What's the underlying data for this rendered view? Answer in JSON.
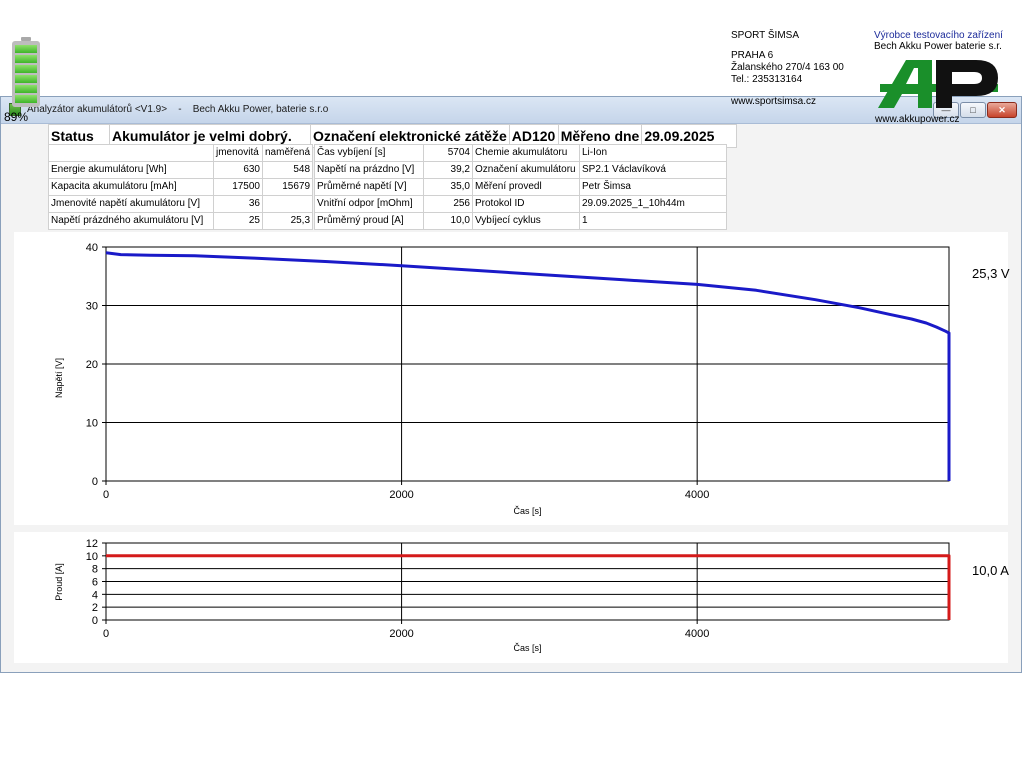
{
  "titlebar": {
    "title": "Analyzátor akumulátorů <V1.9>",
    "separator": "-",
    "company": "Bech Akku Power, baterie s.r.o",
    "minimize_glyph": "—",
    "maximize_glyph": "□",
    "close_glyph": "✕"
  },
  "battery": {
    "percent_label": "89%",
    "level": 0.89
  },
  "header": {
    "status_label": "Status",
    "status_text": "Akumulátor je velmi dobrý.",
    "load_label": "Označení elektronické zátěže",
    "load_value": "AD120",
    "date_label": "Měřeno dne",
    "date_value": "29.09.2025"
  },
  "params": {
    "col_nominal": "jmenovitá",
    "col_measured": "naměřená",
    "rows": [
      {
        "label": "Energie akumulátoru [Wh]",
        "nominal": "630",
        "measured": "548"
      },
      {
        "label": "Kapacita akumulátoru [mAh]",
        "nominal": "17500",
        "measured": "15679"
      },
      {
        "label": "Jmenovité napětí akumulátoru [V]",
        "nominal": "36",
        "measured": ""
      },
      {
        "label": "Napětí prázdného akumulátoru [V]",
        "nominal": "25",
        "measured": "25,3"
      }
    ]
  },
  "measurements": [
    {
      "label": "Čas vybíjení [s]",
      "value": "5704"
    },
    {
      "label": "Napětí na prázdno [V]",
      "value": "39,2"
    },
    {
      "label": "Průměrné napětí [V]",
      "value": "35,0"
    },
    {
      "label": "Vnitřní odpor [mOhm]",
      "value": "256"
    },
    {
      "label": "Průměrný proud [A]",
      "value": "10,0"
    }
  ],
  "info": [
    {
      "label": "Chemie akumulátoru",
      "value": "Li-Ion"
    },
    {
      "label": "Označení akumulátoru",
      "value": "SP2.1 Václavíková"
    },
    {
      "label": "Měření provedl",
      "value": "Petr Šimsa"
    },
    {
      "label": "Protokol ID",
      "value": "29.09.2025_1_10h44m"
    },
    {
      "label": "Vybíjecí cyklus",
      "value": "1"
    }
  ],
  "customer": {
    "name": "SPORT ŠIMSA",
    "city": "PRAHA 6",
    "street": "Žalanského 270/4  163 00",
    "phone": "Tel.: 235313164",
    "web": "www.sportsimsa.cz"
  },
  "manufacturer": {
    "label": "Výrobce testovacího zařízení",
    "name": "Bech Akku Power baterie s.r.",
    "web": "www.akkupower.cz"
  },
  "chart_data": [
    {
      "type": "line",
      "xlabel": "Čas [s]",
      "ylabel": "Napětí [V]",
      "xlim": [
        0,
        5704
      ],
      "ylim": [
        0,
        40
      ],
      "xticks": [
        0,
        2000,
        4000
      ],
      "yticks": [
        0,
        10,
        20,
        30,
        40
      ],
      "grid": true,
      "color": "#1a1ac8",
      "current_value_label": "25,3 V",
      "x": [
        0,
        100,
        300,
        600,
        1000,
        1500,
        2000,
        2500,
        3000,
        3500,
        4000,
        4400,
        4800,
        5100,
        5300,
        5450,
        5550,
        5620,
        5680,
        5704,
        5704
      ],
      "y": [
        39.0,
        38.7,
        38.6,
        38.5,
        38.1,
        37.5,
        36.8,
        36.0,
        35.2,
        34.4,
        33.6,
        32.6,
        31.0,
        29.6,
        28.5,
        27.7,
        27.0,
        26.3,
        25.6,
        25.3,
        0
      ]
    },
    {
      "type": "line",
      "xlabel": "Čas [s]",
      "ylabel": "Proud [A]",
      "xlim": [
        0,
        5704
      ],
      "ylim": [
        0,
        12
      ],
      "xticks": [
        0,
        2000,
        4000
      ],
      "yticks": [
        0,
        2,
        4,
        6,
        8,
        10,
        12
      ],
      "grid": true,
      "color": "#d41a1a",
      "current_value_label": "10,0 A",
      "x": [
        0,
        5704,
        5704
      ],
      "y": [
        10.0,
        10.0,
        0
      ]
    }
  ]
}
